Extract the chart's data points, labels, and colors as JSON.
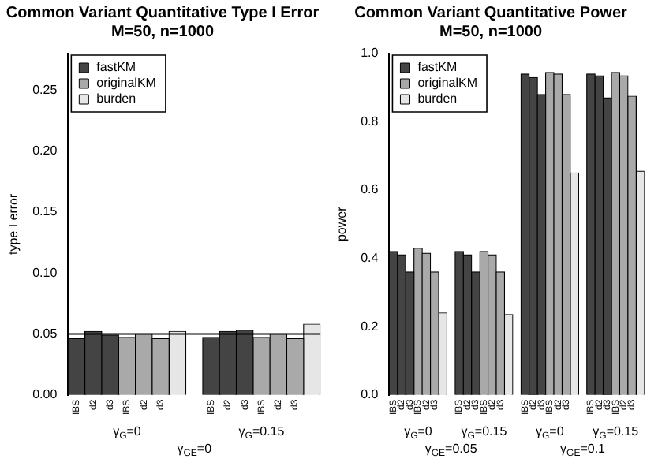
{
  "chart_data": [
    {
      "type": "bar",
      "title": "Common Variant Quantitative Type I Error",
      "subtitle": "M=50, n=1000",
      "ylabel": "type I error",
      "categories": [
        "IBS",
        "d2",
        "d3",
        "IBS",
        "d2",
        "d3",
        null,
        null,
        "IBS",
        "d2",
        "d3",
        "IBS",
        "d2",
        "d3",
        null
      ],
      "series": [
        {
          "name": "fastKM",
          "color": "#444444",
          "values": [
            0.046,
            0.052,
            0.049,
            null,
            null,
            null,
            null,
            null,
            0.047,
            0.052,
            0.053,
            null,
            null,
            null,
            null
          ]
        },
        {
          "name": "originalKM",
          "color": "#a9a9a9",
          "values": [
            null,
            null,
            null,
            0.047,
            0.05,
            0.046,
            null,
            null,
            null,
            null,
            null,
            0.047,
            0.05,
            0.046,
            null
          ]
        },
        {
          "name": "burden",
          "color": "#e6e6e6",
          "values": [
            null,
            null,
            null,
            null,
            null,
            null,
            0.052,
            null,
            null,
            null,
            null,
            null,
            null,
            null,
            0.058
          ]
        }
      ],
      "ylim": [
        0,
        0.28
      ],
      "yticks": [
        {
          "value": 0,
          "label": "0.00"
        },
        0.05,
        {
          "value": 0.1,
          "label": "0.10"
        },
        0.15,
        {
          "value": 0.2,
          "label": "0.20"
        },
        0.25
      ],
      "ref_lines": [
        {
          "axis": "y",
          "value": 0.05,
          "color": "#000000"
        }
      ],
      "legend": "top left",
      "grid": false,
      "annotations": [
        "γ$_{G}$=0",
        "γ$_{G}$=0.15",
        "γ$_{GE}$=0"
      ]
    },
    {
      "type": "bar",
      "title": "Common Variant Quantitative Power",
      "subtitle": "M=50, n=1000",
      "ylabel": "power",
      "categories": [
        "IBS",
        "d2",
        "d3",
        "IBS",
        "d2",
        "d3",
        null,
        null,
        "IBS",
        "d2",
        "d3",
        "IBS",
        "d2",
        "d3",
        null,
        null,
        "IBS",
        "d2",
        "d3",
        "IBS",
        "d2",
        "d3",
        null,
        null,
        "IBS",
        "d2",
        "d3",
        "IBS",
        "d2",
        "d3",
        null
      ],
      "series": [
        {
          "name": "fastKM",
          "color": "#444444",
          "values": [
            0.42,
            0.41,
            0.36,
            null,
            null,
            null,
            null,
            null,
            0.42,
            0.41,
            0.36,
            null,
            null,
            null,
            null,
            null,
            0.94,
            0.93,
            0.88,
            null,
            null,
            null,
            null,
            null,
            0.94,
            0.935,
            0.87,
            null,
            null,
            null,
            null
          ]
        },
        {
          "name": "originalKM",
          "color": "#a9a9a9",
          "values": [
            null,
            null,
            null,
            0.43,
            0.415,
            0.36,
            null,
            null,
            null,
            null,
            null,
            0.42,
            0.41,
            0.36,
            null,
            null,
            null,
            null,
            null,
            0.945,
            0.94,
            0.88,
            null,
            null,
            null,
            null,
            null,
            0.945,
            0.935,
            0.875,
            null
          ]
        },
        {
          "name": "burden",
          "color": "#e6e6e6",
          "values": [
            null,
            null,
            null,
            null,
            null,
            null,
            0.24,
            null,
            null,
            null,
            null,
            null,
            null,
            null,
            0.235,
            null,
            null,
            null,
            null,
            null,
            null,
            null,
            0.65,
            null,
            null,
            null,
            null,
            null,
            null,
            null,
            0.655
          ]
        }
      ],
      "ylim": [
        0,
        1
      ],
      "yticks": [
        {
          "value": 0,
          "label": "0.0"
        },
        0.2,
        0.4,
        0.6,
        0.8,
        {
          "value": 1,
          "label": "1.0"
        }
      ],
      "legend": "top left",
      "grid": false,
      "annotations": [
        "γ$_{G}$=0",
        "γ$_{G}$=0.15",
        "γ$_{G}$=0",
        "γ$_{G}$=0.15",
        "γ$_{GE}$=0.05",
        "γ$_{GE}$=0.1"
      ]
    }
  ]
}
